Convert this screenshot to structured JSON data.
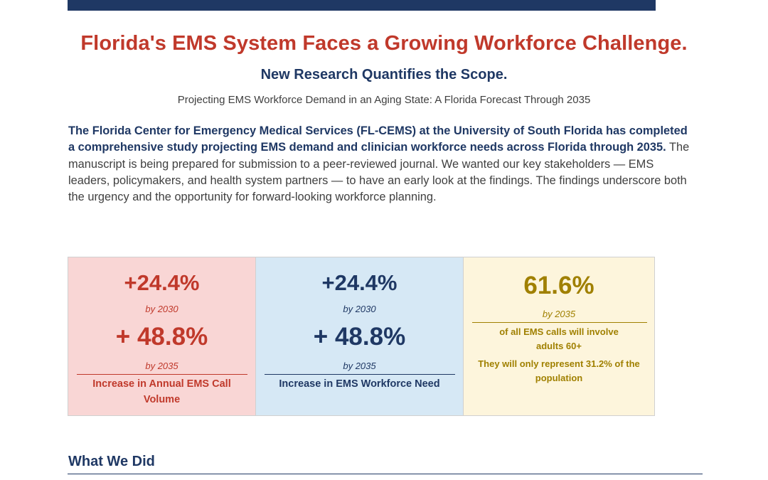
{
  "header": {
    "title": "Florida's EMS System Faces a Growing Workforce Challenge.",
    "subtitle": "New Research Quantifies the Scope.",
    "caption": "Projecting EMS Workforce Demand in an Aging State: A Florida Forecast Through 2035"
  },
  "intro": {
    "lead": "The Florida Center for Emergency Medical Services (FL-CEMS) at the University of South Florida has completed a comprehensive study projecting EMS demand and clinician workforce needs across Florida through 2035.",
    "body": " The manuscript is being prepared for submission to a peer-reviewed journal. We wanted our key stakeholders — EMS leaders, policymakers, and health system partners — to have an early look at the findings. The findings underscore both the urgency and the opportunity for forward-looking workforce planning."
  },
  "stats": {
    "call_volume": {
      "value_2030": "+24.4%",
      "label_2030": "by 2030",
      "value_2035": "+ 48.8%",
      "label_2035": "by 2035",
      "description": "Increase in Annual EMS Call Volume"
    },
    "workforce": {
      "value_2030": "+24.4%",
      "label_2030": "by 2030",
      "value_2035": "+ 48.8%",
      "label_2035": "by 2035",
      "description": "Increase in EMS Workforce Need"
    },
    "older_adults": {
      "value": "61.6%",
      "label": "by 2035",
      "line1": "of all EMS calls will involve adults 60+",
      "line2": "They will only represent 31.2% of the population"
    }
  },
  "section": {
    "heading": "What We Did"
  },
  "colors": {
    "navy": "#1f3864",
    "red": "#c0392b",
    "gold": "#a08000",
    "red_bg": "#f9d6d5",
    "blue_bg": "#d6e8f5",
    "gold_bg": "#fdf5dc"
  }
}
